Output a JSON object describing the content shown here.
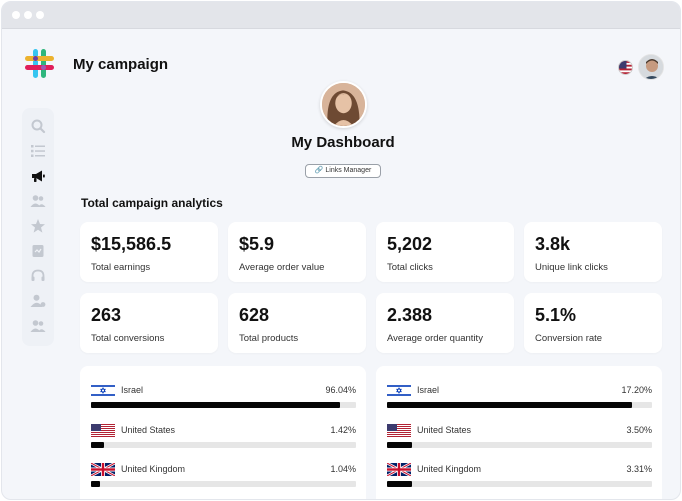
{
  "header": {
    "app_title": "My campaign",
    "dashboard_title": "My Dashboard",
    "links_manager_label": "Links Manager"
  },
  "sidebar": {
    "items": [
      {
        "name": "search-icon"
      },
      {
        "name": "list-icon"
      },
      {
        "name": "megaphone-icon",
        "active": true
      },
      {
        "name": "users-icon"
      },
      {
        "name": "star-icon"
      },
      {
        "name": "document-icon"
      },
      {
        "name": "headset-icon"
      },
      {
        "name": "user-settings-icon"
      },
      {
        "name": "team-icon"
      }
    ]
  },
  "analytics": {
    "section_title": "Total campaign analytics",
    "cards": [
      {
        "value": "$15,586.5",
        "label": "Total earnings"
      },
      {
        "value": "$5.9",
        "label": "Average order value"
      },
      {
        "value": "5,202",
        "label": "Total clicks"
      },
      {
        "value": "3.8k",
        "label": "Unique link clicks"
      },
      {
        "value": "263",
        "label": "Total conversions"
      },
      {
        "value": "628",
        "label": "Total products"
      },
      {
        "value": "2.388",
        "label": "Average order quantity"
      },
      {
        "value": "5.1%",
        "label": "Conversion rate"
      }
    ]
  },
  "panels": [
    {
      "rows": [
        {
          "country": "Israel",
          "flag": "israel-flag-icon",
          "percent": "96.04%",
          "fill": 0.94
        },
        {
          "country": "United States",
          "flag": "us-flag-icon",
          "percent": "1.42%",
          "fill": 0.05
        },
        {
          "country": "United Kingdom",
          "flag": "uk-flag-icon",
          "percent": "1.04%",
          "fill": 0.035
        }
      ]
    },
    {
      "rows": [
        {
          "country": "Israel",
          "flag": "israel-flag-icon",
          "percent": "17.20%",
          "fill": 0.925
        },
        {
          "country": "United States",
          "flag": "us-flag-icon",
          "percent": "3.50%",
          "fill": 0.095
        },
        {
          "country": "United Kingdom",
          "flag": "uk-flag-icon",
          "percent": "3.31%",
          "fill": 0.095
        }
      ]
    }
  ],
  "colors": {
    "background": "#f4f6fa",
    "card": "#ffffff",
    "bar_fill": "#050505",
    "bar_track": "#e6e6e6",
    "sidebar_icon": "#c3c8d0",
    "sidebar_icon_active": "#111111"
  }
}
